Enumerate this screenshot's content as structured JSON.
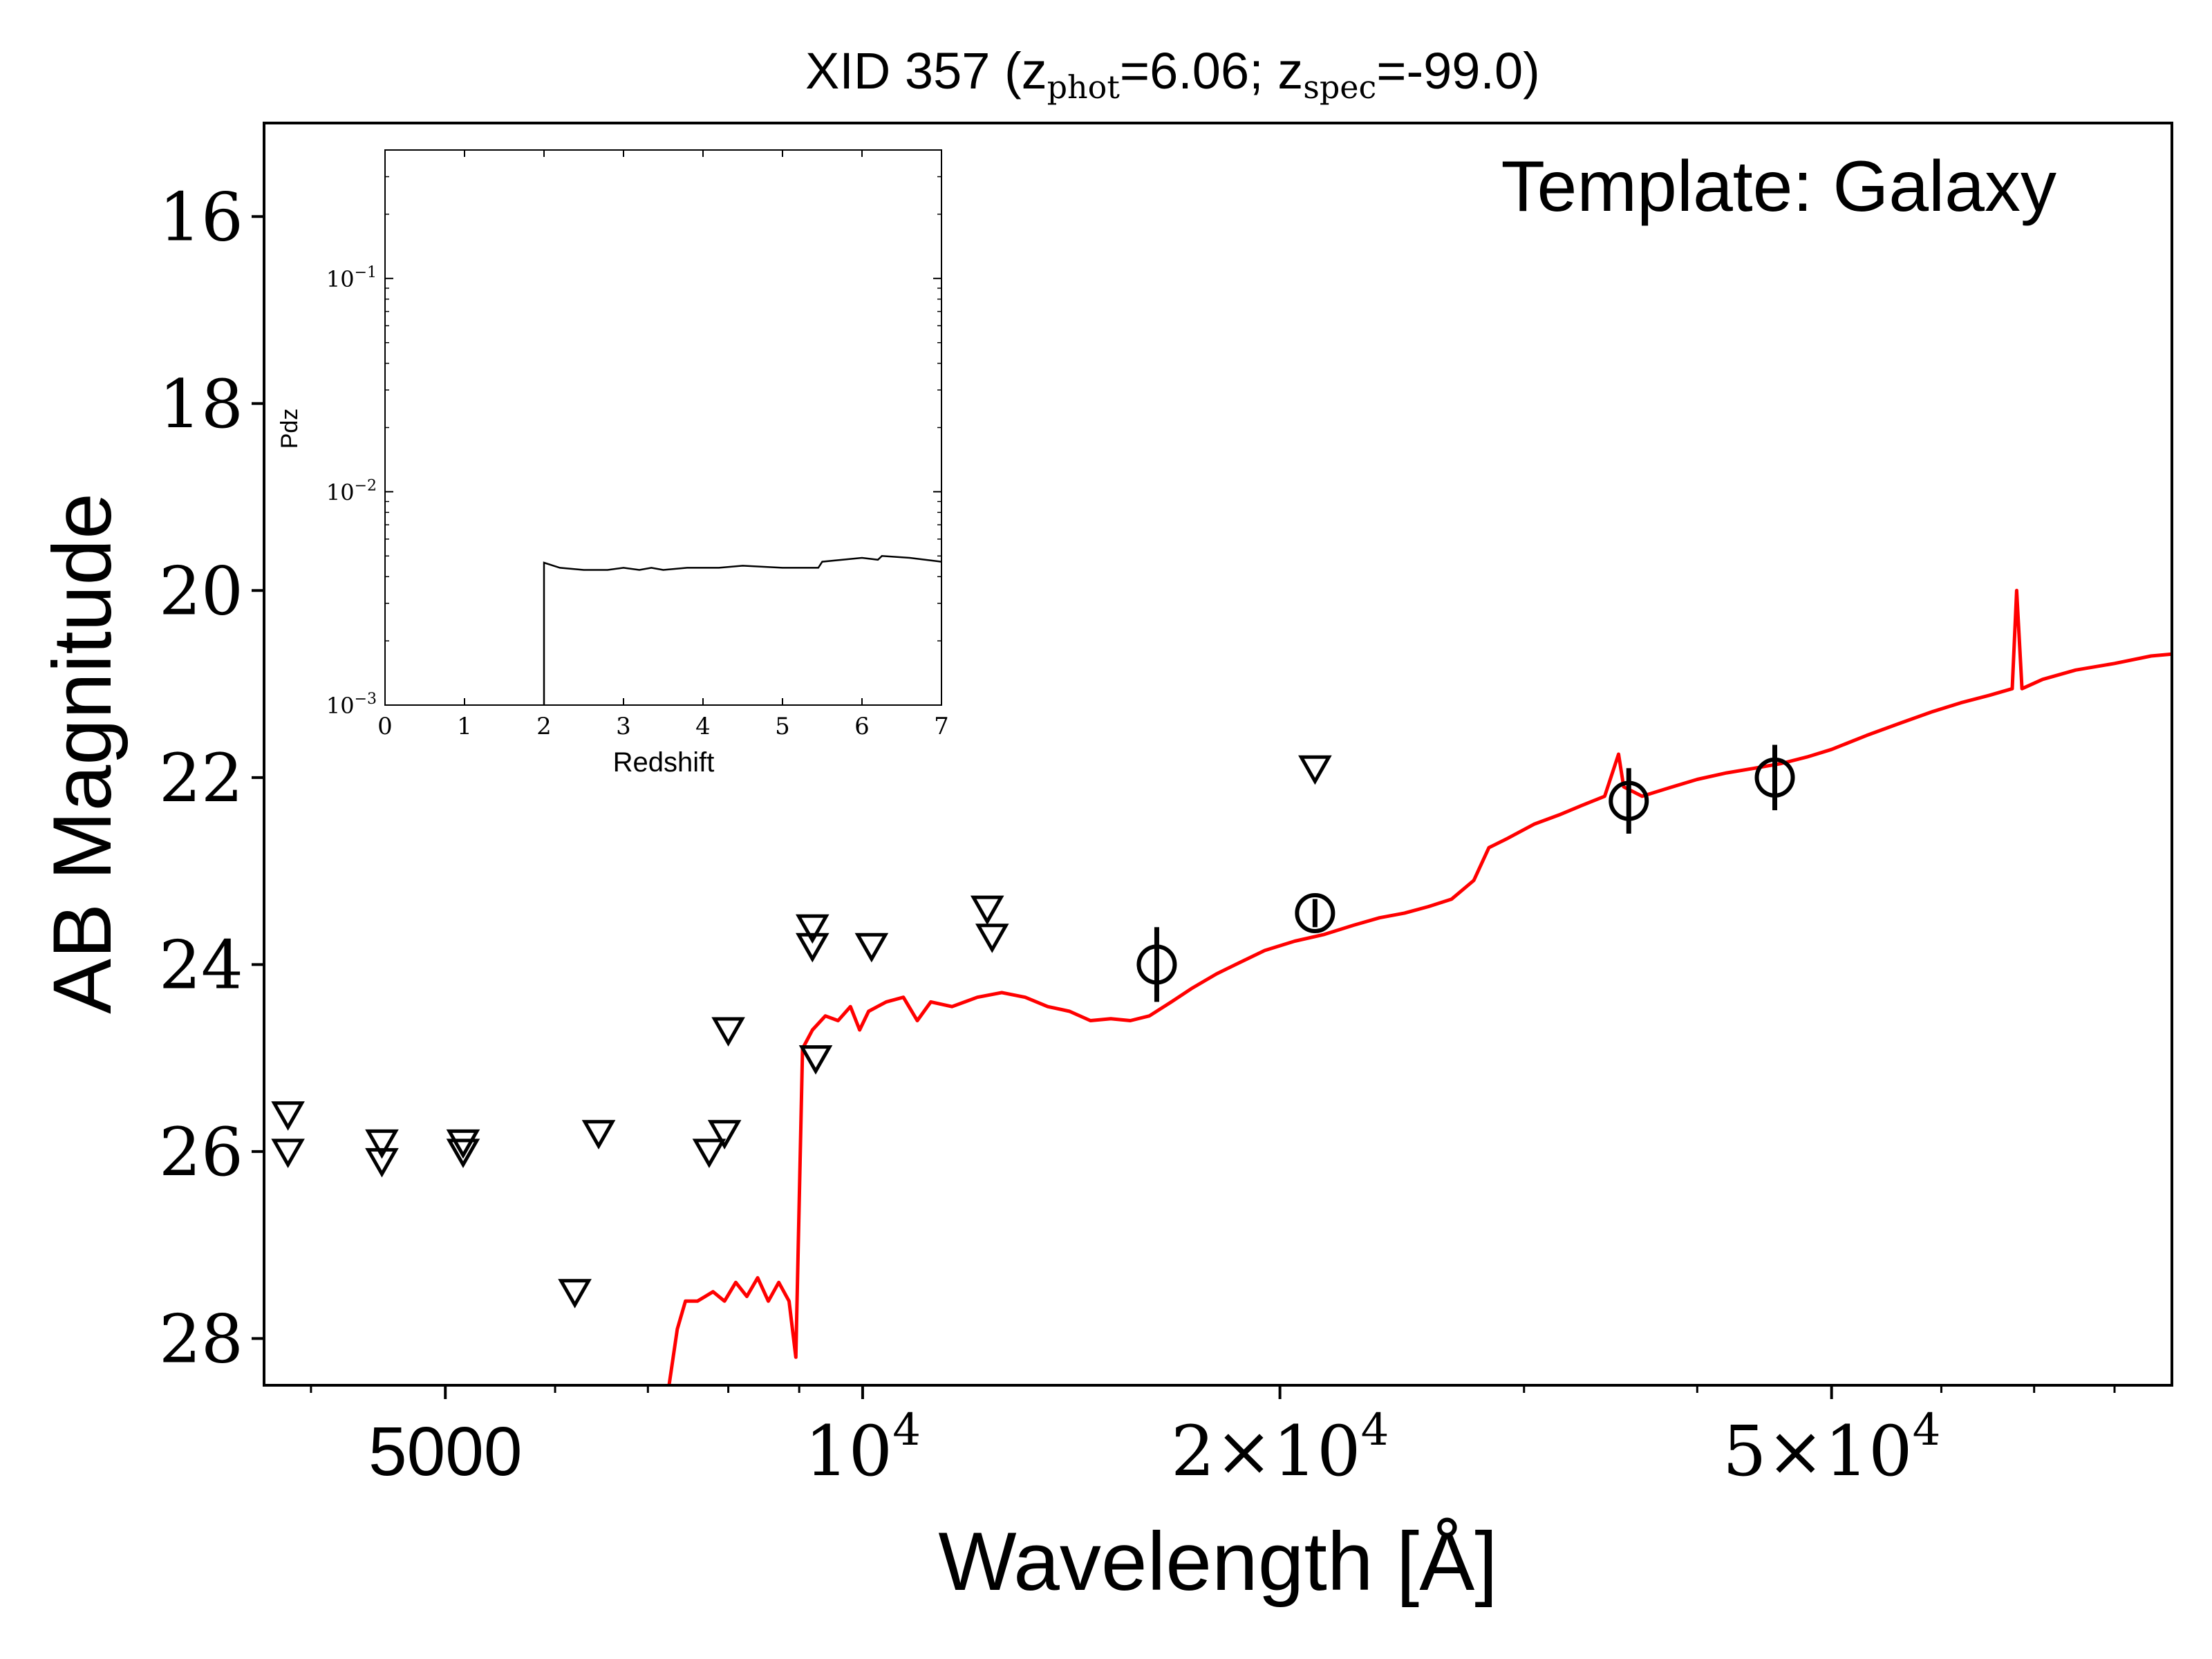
{
  "chart_data": [
    {
      "type": "scatter",
      "title": "XID 357",
      "title_parts": {
        "prefix": "XID 357 (z",
        "sub_phot": "phot",
        "phot_value": "=6.06; z",
        "sub_spec": "spec",
        "spec_value": "=-99.0)"
      },
      "annotation": "Template: Galaxy",
      "xlabel": "Wavelength [Å]",
      "ylabel": "AB Magnitude",
      "xscale": "log",
      "xlim": [
        3700,
        88000
      ],
      "ylim": [
        28.5,
        15
      ],
      "x_ticks": [
        {
          "value": 5000,
          "label": "5000"
        },
        {
          "value": 10000,
          "label": "10",
          "exp": "4",
          "mult": ""
        },
        {
          "value": 20000,
          "label": "2×10",
          "exp": "4",
          "mult": "2×"
        },
        {
          "value": 50000,
          "label": "5×10",
          "exp": "4",
          "mult": "5×"
        }
      ],
      "y_ticks": [
        "16",
        "18",
        "20",
        "22",
        "24",
        "26",
        "28"
      ],
      "series": [
        {
          "kind": "model",
          "color": "#ff0000",
          "points": [
            [
              7250,
              28.5
            ],
            [
              7350,
              27.9
            ],
            [
              7450,
              27.6
            ],
            [
              7600,
              27.6
            ],
            [
              7800,
              27.5
            ],
            [
              7950,
              27.6
            ],
            [
              8100,
              27.4
            ],
            [
              8250,
              27.55
            ],
            [
              8400,
              27.35
            ],
            [
              8550,
              27.6
            ],
            [
              8700,
              27.4
            ],
            [
              8850,
              27.6
            ],
            [
              8950,
              28.2
            ],
            [
              9050,
              24.9
            ],
            [
              9200,
              24.7
            ],
            [
              9400,
              24.55
            ],
            [
              9600,
              24.6
            ],
            [
              9800,
              24.45
            ],
            [
              9950,
              24.7
            ],
            [
              10100,
              24.5
            ],
            [
              10400,
              24.4
            ],
            [
              10700,
              24.35
            ],
            [
              10950,
              24.6
            ],
            [
              11200,
              24.4
            ],
            [
              11600,
              24.45
            ],
            [
              12100,
              24.35
            ],
            [
              12600,
              24.3
            ],
            [
              13100,
              24.35
            ],
            [
              13600,
              24.45
            ],
            [
              14100,
              24.5
            ],
            [
              14600,
              24.6
            ],
            [
              15100,
              24.58
            ],
            [
              15600,
              24.6
            ],
            [
              16100,
              24.55
            ],
            [
              16700,
              24.4
            ],
            [
              17300,
              24.25
            ],
            [
              18000,
              24.1
            ],
            [
              18700,
              23.98
            ],
            [
              19500,
              23.85
            ],
            [
              20500,
              23.75
            ],
            [
              21500,
              23.68
            ],
            [
              22600,
              23.58
            ],
            [
              23600,
              23.5
            ],
            [
              24600,
              23.45
            ],
            [
              25600,
              23.38
            ],
            [
              26600,
              23.3
            ],
            [
              27600,
              23.1
            ],
            [
              28300,
              22.75
            ],
            [
              29200,
              22.65
            ],
            [
              30500,
              22.5
            ],
            [
              31800,
              22.4
            ],
            [
              33000,
              22.3
            ],
            [
              34300,
              22.2
            ],
            [
              35100,
              21.75
            ],
            [
              35400,
              22.1
            ],
            [
              36500,
              22.2
            ],
            [
              38000,
              22.12
            ],
            [
              40000,
              22.02
            ],
            [
              42000,
              21.95
            ],
            [
              44000,
              21.9
            ],
            [
              46000,
              21.85
            ],
            [
              48000,
              21.78
            ],
            [
              50000,
              21.7
            ],
            [
              53000,
              21.55
            ],
            [
              56000,
              21.42
            ],
            [
              59000,
              21.3
            ],
            [
              62000,
              21.2
            ],
            [
              65000,
              21.12
            ],
            [
              67500,
              21.05
            ],
            [
              68000,
              20
            ],
            [
              68600,
              21.05
            ],
            [
              71000,
              20.95
            ],
            [
              75000,
              20.85
            ],
            [
              80000,
              20.78
            ],
            [
              85000,
              20.7
            ],
            [
              88000,
              20.68
            ]
          ]
        },
        {
          "kind": "detection",
          "marker": "open-circle",
          "points": [
            {
              "x": 16300,
              "y": 24.0,
              "err": 0.4
            },
            {
              "x": 21200,
              "y": 23.45,
              "err": 0.15
            },
            {
              "x": 35700,
              "y": 22.25,
              "err": 0.35
            },
            {
              "x": 45500,
              "y": 22.0,
              "err": 0.35
            }
          ]
        },
        {
          "kind": "upper-limit",
          "marker": "open-triangle-down",
          "points": [
            [
              3850,
              25.6
            ],
            [
              3850,
              26.0
            ],
            [
              4500,
              25.9
            ],
            [
              4500,
              26.1
            ],
            [
              5150,
              25.9
            ],
            [
              5150,
              26.0
            ],
            [
              6200,
              27.5
            ],
            [
              6450,
              25.8
            ],
            [
              7750,
              26.0
            ],
            [
              8000,
              24.7
            ],
            [
              7950,
              25.8
            ],
            [
              9200,
              23.6
            ],
            [
              9200,
              23.8
            ],
            [
              9250,
              25.0
            ],
            [
              10150,
              23.8
            ],
            [
              12300,
              23.4
            ],
            [
              12400,
              23.7
            ],
            [
              21200,
              21.9
            ]
          ]
        }
      ]
    },
    {
      "type": "line",
      "inset": true,
      "xlabel": "Redshift",
      "ylabel": "Pdz",
      "yscale": "log",
      "xlim": [
        0,
        7
      ],
      "ylim": [
        0.001,
        0.4
      ],
      "x_ticks": [
        "0",
        "1",
        "2",
        "3",
        "4",
        "5",
        "6",
        "7"
      ],
      "y_ticks": [
        {
          "value": 0.1,
          "base": "10",
          "exp": "−1"
        },
        {
          "value": 0.01,
          "base": "10",
          "exp": "−2"
        },
        {
          "value": 0.001,
          "base": "10",
          "exp": "−3"
        }
      ],
      "series": [
        {
          "color": "#000000",
          "points": [
            [
              2.0,
              0.001
            ],
            [
              2.0,
              0.00465
            ],
            [
              2.2,
              0.0044
            ],
            [
              2.5,
              0.0043
            ],
            [
              2.8,
              0.0043
            ],
            [
              3.0,
              0.0044
            ],
            [
              3.2,
              0.0043
            ],
            [
              3.35,
              0.0044
            ],
            [
              3.5,
              0.0043
            ],
            [
              3.8,
              0.0044
            ],
            [
              4.2,
              0.0044
            ],
            [
              4.5,
              0.0045
            ],
            [
              5.0,
              0.0044
            ],
            [
              5.45,
              0.0044
            ],
            [
              5.5,
              0.0047
            ],
            [
              6.0,
              0.0049
            ],
            [
              6.2,
              0.0048
            ],
            [
              6.25,
              0.005
            ],
            [
              6.6,
              0.0049
            ],
            [
              7.0,
              0.0047
            ]
          ]
        }
      ]
    }
  ]
}
